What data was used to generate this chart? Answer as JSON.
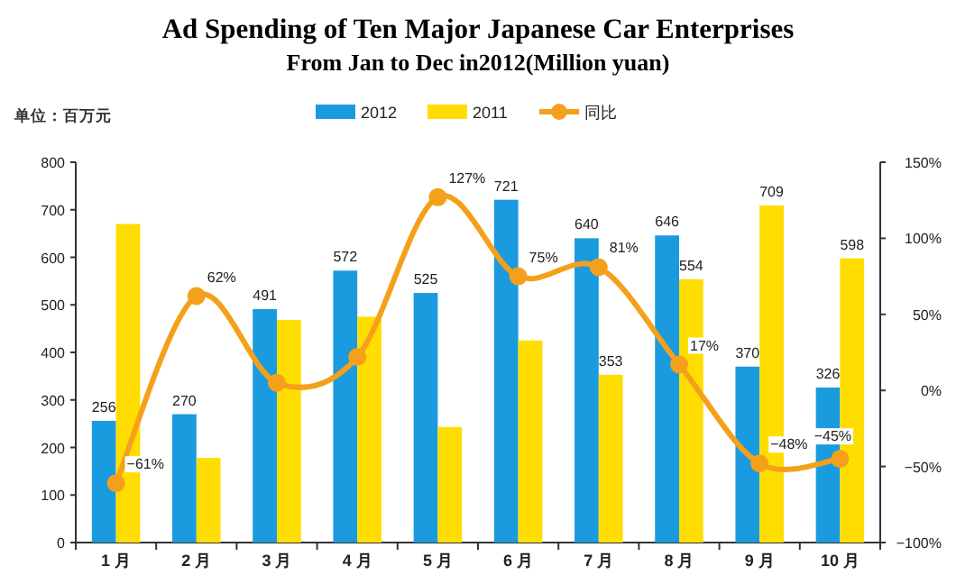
{
  "chart_data": {
    "type": "bar",
    "title": "Ad Spending of Ten Major Japanese Car Enterprises",
    "subtitle": "From Jan to Dec in2012(Million yuan)",
    "annotations": [
      "单位：百万元"
    ],
    "categories": [
      "1 月",
      "2 月",
      "3 月",
      "4 月",
      "5 月",
      "6 月",
      "7 月",
      "8 月",
      "9 月",
      "10 月"
    ],
    "series": [
      {
        "name": "2012",
        "color": "#1a9be0",
        "values": [
          256,
          270,
          491,
          572,
          525,
          721,
          640,
          646,
          370,
          326
        ],
        "value_labels": [
          "256",
          "270",
          "491",
          "572",
          "525",
          "721",
          "640",
          "646",
          "370",
          "326"
        ]
      },
      {
        "name": "2011",
        "color": "#ffdd00",
        "values": [
          670,
          178,
          468,
          475,
          243,
          425,
          353,
          554,
          709,
          598
        ],
        "value_labels": [
          null,
          null,
          null,
          null,
          null,
          null,
          "353",
          "554",
          "709",
          "598"
        ]
      },
      {
        "name": "同比",
        "type": "line",
        "axis": "y2",
        "color": "#f5a01a",
        "marker": "circle",
        "values": [
          -61,
          62,
          5,
          22,
          127,
          75,
          81,
          17,
          -48,
          -45
        ],
        "value_labels": [
          "−61%",
          "62%",
          null,
          null,
          "127%",
          "75%",
          "81%",
          "17%",
          "−48%",
          "−45%"
        ]
      }
    ],
    "ylim": [
      0,
      800
    ],
    "yticks": [
      0,
      100,
      200,
      300,
      400,
      500,
      600,
      700,
      800
    ],
    "y2lim": [
      -100,
      150
    ],
    "y2ticks": [
      {
        "value": -100,
        "label": "−100%"
      },
      {
        "value": -50,
        "label": "−50%"
      },
      {
        "value": 0,
        "label": "0%"
      },
      {
        "value": 50,
        "label": "50%"
      },
      {
        "value": 100,
        "label": "100%"
      },
      {
        "value": 150,
        "label": "150%"
      }
    ],
    "legend": "top"
  }
}
